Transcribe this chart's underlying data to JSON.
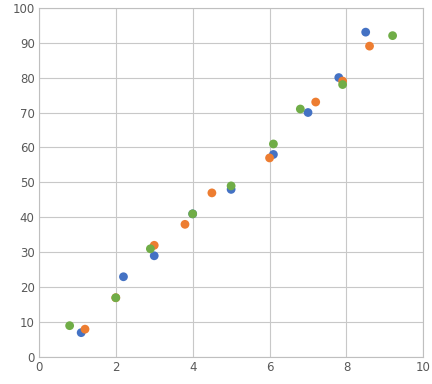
{
  "series": {
    "blue": {
      "x": [
        1.1,
        2.2,
        3.0,
        4.0,
        5.0,
        6.1,
        7.0,
        7.8,
        8.5
      ],
      "y": [
        7,
        23,
        29,
        41,
        48,
        58,
        70,
        80,
        93
      ]
    },
    "orange": {
      "x": [
        1.2,
        2.0,
        3.0,
        3.8,
        4.5,
        6.0,
        7.2,
        7.9,
        8.6
      ],
      "y": [
        8,
        17,
        32,
        38,
        47,
        57,
        73,
        79,
        89
      ]
    },
    "green": {
      "x": [
        0.8,
        2.0,
        2.9,
        4.0,
        5.0,
        6.1,
        6.8,
        7.9,
        9.2
      ],
      "y": [
        9,
        17,
        31,
        41,
        49,
        61,
        71,
        78,
        92
      ]
    }
  },
  "colors": {
    "blue": "#4472C4",
    "orange": "#ED7D31",
    "green": "#70AD47"
  },
  "xlim": [
    0,
    10
  ],
  "ylim": [
    0,
    100
  ],
  "xticks": [
    0,
    2,
    4,
    6,
    8,
    10
  ],
  "yticks": [
    0,
    10,
    20,
    30,
    40,
    50,
    60,
    70,
    80,
    90,
    100
  ],
  "grid_color": "#c8c8c8",
  "marker_size": 40,
  "background_color": "#ffffff",
  "tick_label_color": "#595959",
  "tick_fontsize": 8.5,
  "spine_color": "#bfbfbf"
}
